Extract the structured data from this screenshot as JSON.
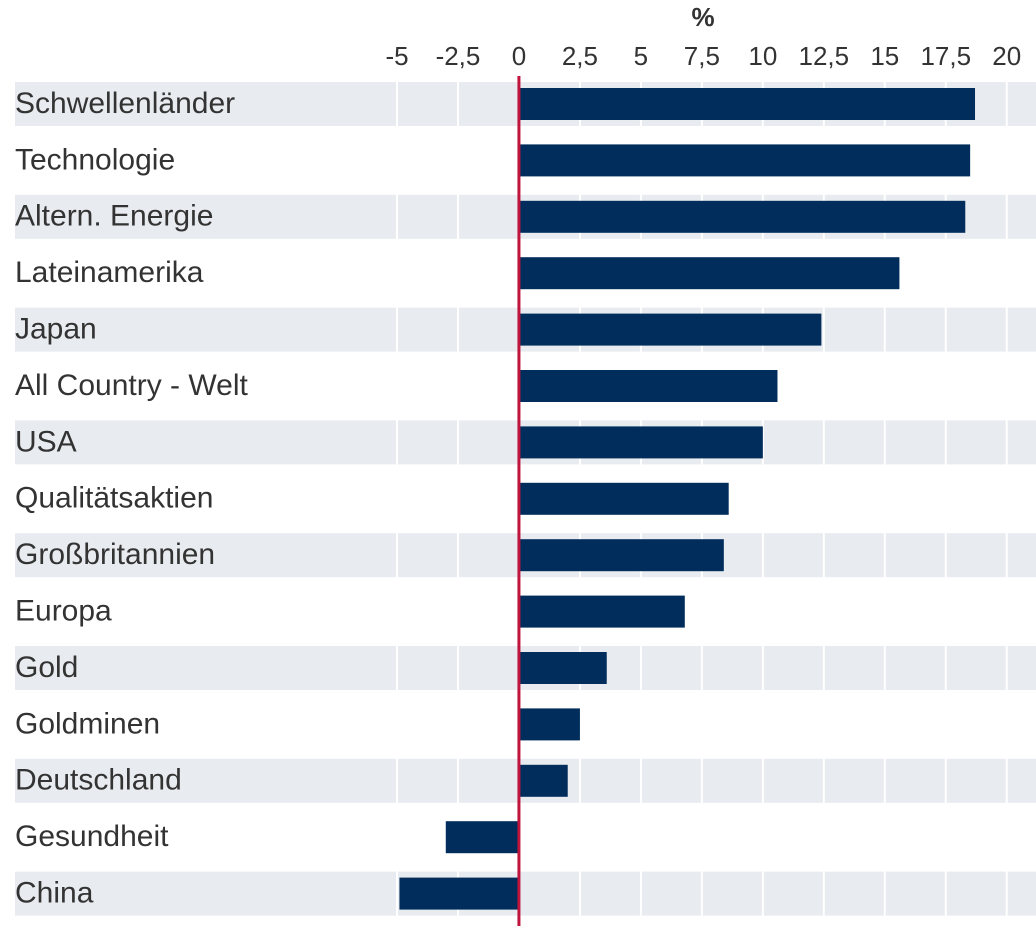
{
  "chart_data": {
    "type": "bar",
    "orientation": "horizontal",
    "title": "%",
    "categories": [
      "Schwellenländer",
      "Technologie",
      "Altern. Energie",
      "Lateinamerika",
      "Japan",
      "All Country - Welt",
      "USA",
      "Qualitätsaktien",
      "Großbritannien",
      "Europa",
      "Gold",
      "Goldminen",
      "Deutschland",
      "Gesundheit",
      "China"
    ],
    "values": [
      18.7,
      18.5,
      18.3,
      15.6,
      12.4,
      10.6,
      10.0,
      8.6,
      8.4,
      6.8,
      3.6,
      2.5,
      2.0,
      -3.0,
      -4.9
    ],
    "color": "#002d5c",
    "xlim": [
      -5,
      21.2
    ],
    "xticks": [
      -5,
      {
        "value": -2.5,
        "label": "-2,5"
      },
      0,
      {
        "value": 2.5,
        "label": "2,5"
      },
      5,
      {
        "value": 7.5,
        "label": "7,5"
      },
      10,
      {
        "value": 12.5,
        "label": "12,5"
      },
      15,
      {
        "value": 17.5,
        "label": "17,5"
      },
      20
    ],
    "grid": true
  }
}
